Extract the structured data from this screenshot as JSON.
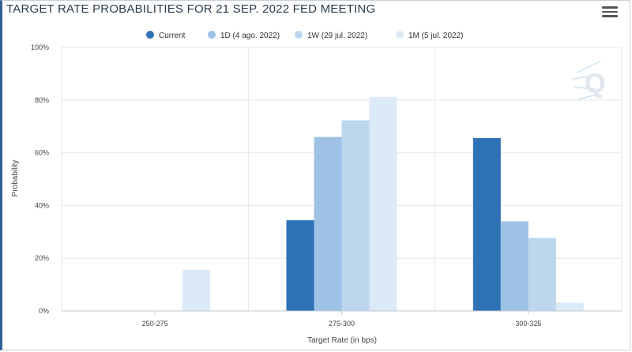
{
  "header": {
    "title": "TARGET RATE PROBABILITIES FOR 21 SEP. 2022 FED MEETING",
    "menu_icon": "hamburger-menu-icon"
  },
  "watermark": {
    "icon": "q-logo-icon",
    "text": "Q"
  },
  "chart_data": {
    "type": "bar",
    "title": "TARGET RATE PROBABILITIES FOR 21 SEP. 2022 FED MEETING",
    "xlabel": "Target Rate (in bps)",
    "ylabel": "Probability",
    "categories": [
      "250-275",
      "275-300",
      "300-325"
    ],
    "ylim": [
      0,
      100
    ],
    "yticks": [
      "0%",
      "20%",
      "40%",
      "60%",
      "80%",
      "100%"
    ],
    "legend_position": "top-center",
    "grid": true,
    "series": [
      {
        "name": "Current",
        "color": "#2e71b4",
        "values": [
          0,
          34.4,
          65.6
        ]
      },
      {
        "name": "1D (4 ago. 2022)",
        "color": "#9dc2e6",
        "values": [
          0,
          66.0,
          34.0
        ]
      },
      {
        "name": "1W (29 jul. 2022)",
        "color": "#bcd6ee",
        "values": [
          0,
          72.3,
          27.7
        ]
      },
      {
        "name": "1M (5 jul. 2022)",
        "color": "#dce9f6",
        "values": [
          15.6,
          81.2,
          3.2
        ]
      }
    ]
  }
}
